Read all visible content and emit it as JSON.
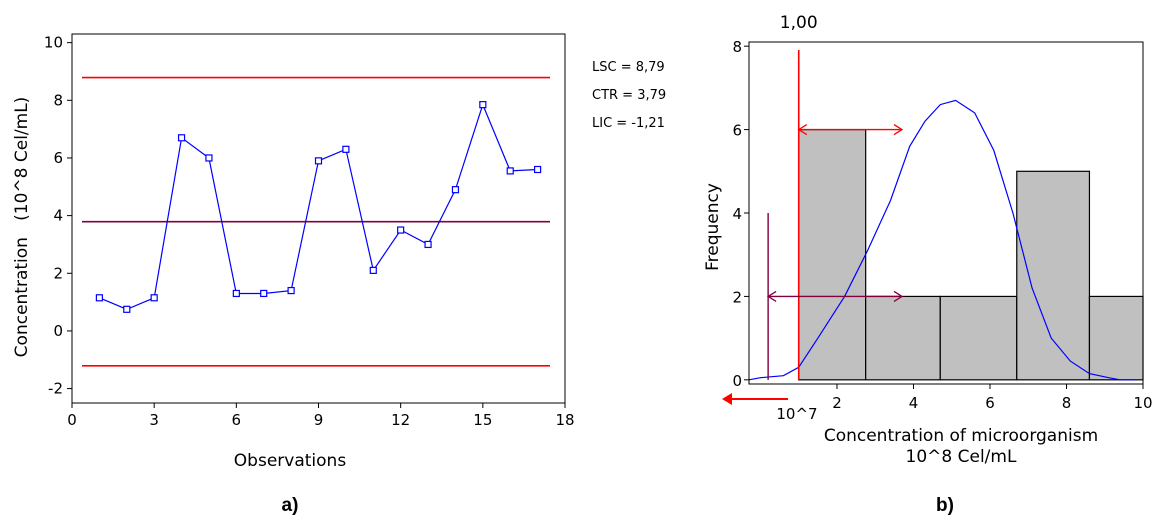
{
  "panel_labels": {
    "a": "a)",
    "b": "b)"
  },
  "chart_data": [
    {
      "type": "line",
      "xlabel": "Observations",
      "ylabel": "Concentration   (10^8 Cel/mL)",
      "xlim": [
        0,
        18
      ],
      "ylim": [
        -2.5,
        10.3
      ],
      "x_ticks": [
        0,
        3,
        6,
        9,
        12,
        15,
        18
      ],
      "y_ticks": [
        -2,
        0,
        2,
        4,
        6,
        8,
        10
      ],
      "grid": false,
      "series": [
        {
          "x": [
            1,
            2,
            3,
            4,
            5,
            6,
            7,
            8,
            9,
            10,
            11,
            12,
            13,
            14,
            15,
            16,
            17
          ],
          "values": [
            1.15,
            0.75,
            1.15,
            6.7,
            6.0,
            1.3,
            1.3,
            1.4,
            5.9,
            6.3,
            2.1,
            3.5,
            3.0,
            4.9,
            7.85,
            5.55,
            5.6
          ],
          "color": "#0000ff"
        }
      ],
      "control_limits": [
        {
          "label": "LSC = 8,79",
          "value": 8.79,
          "color": "#ff0000"
        },
        {
          "label": "CTR = 3,79",
          "value": 3.79,
          "color": "#800040"
        },
        {
          "label": "LIC = -1,21",
          "value": -1.21,
          "color": "#ff0000"
        }
      ]
    },
    {
      "type": "bar",
      "xlabel": "Concentration of microorganism",
      "xlabel2": "10^8 Cel/mL",
      "ylabel": "Frequency",
      "xlim": [
        -0.3,
        10
      ],
      "ylim": [
        -0.1,
        8.1
      ],
      "x_ticks": [
        2,
        4,
        6,
        8,
        10
      ],
      "x_tick_text": [
        "2",
        "4",
        "6",
        "8",
        "10"
      ],
      "y_ticks": [
        0,
        2,
        4,
        6,
        8
      ],
      "grid": false,
      "bins": [
        {
          "x0": 1.0,
          "x1": 2.75,
          "value": 6
        },
        {
          "x0": 2.75,
          "x1": 4.7,
          "value": 2
        },
        {
          "x0": 4.7,
          "x1": 6.7,
          "value": 2
        },
        {
          "x0": 6.7,
          "x1": 8.6,
          "value": 5
        },
        {
          "x0": 8.6,
          "x1": 10.7,
          "value": 2
        }
      ],
      "bar_color": "#c0c0c0",
      "density_curve": {
        "x": [
          -0.3,
          0.0,
          0.6,
          1.0,
          1.5,
          2.2,
          2.8,
          3.4,
          3.9,
          4.3,
          4.7,
          5.1,
          5.6,
          6.1,
          6.6,
          7.1,
          7.6,
          8.1,
          8.6,
          9.1,
          9.4,
          9.8
        ],
        "values": [
          0.0,
          0.05,
          0.1,
          0.3,
          1.0,
          2.0,
          3.1,
          4.3,
          5.6,
          6.2,
          6.6,
          6.7,
          6.4,
          5.5,
          4.0,
          2.2,
          1.0,
          0.45,
          0.15,
          0.05,
          0.0,
          0.0
        ],
        "color": "#0000ff"
      },
      "reference_x": {
        "value": 1.0,
        "label": "1,00",
        "color": "#ff0000"
      },
      "red_arrow": {
        "y": 6,
        "x0": 1.0,
        "x1": 3.7
      },
      "purple_marker": {
        "x": 0.2,
        "y0": 0,
        "y1": 4.0,
        "color": "#800040"
      },
      "purple_arrow": {
        "y": 2,
        "x0": 0.2,
        "x1": 3.7
      },
      "offscale_label": "10^7"
    }
  ]
}
